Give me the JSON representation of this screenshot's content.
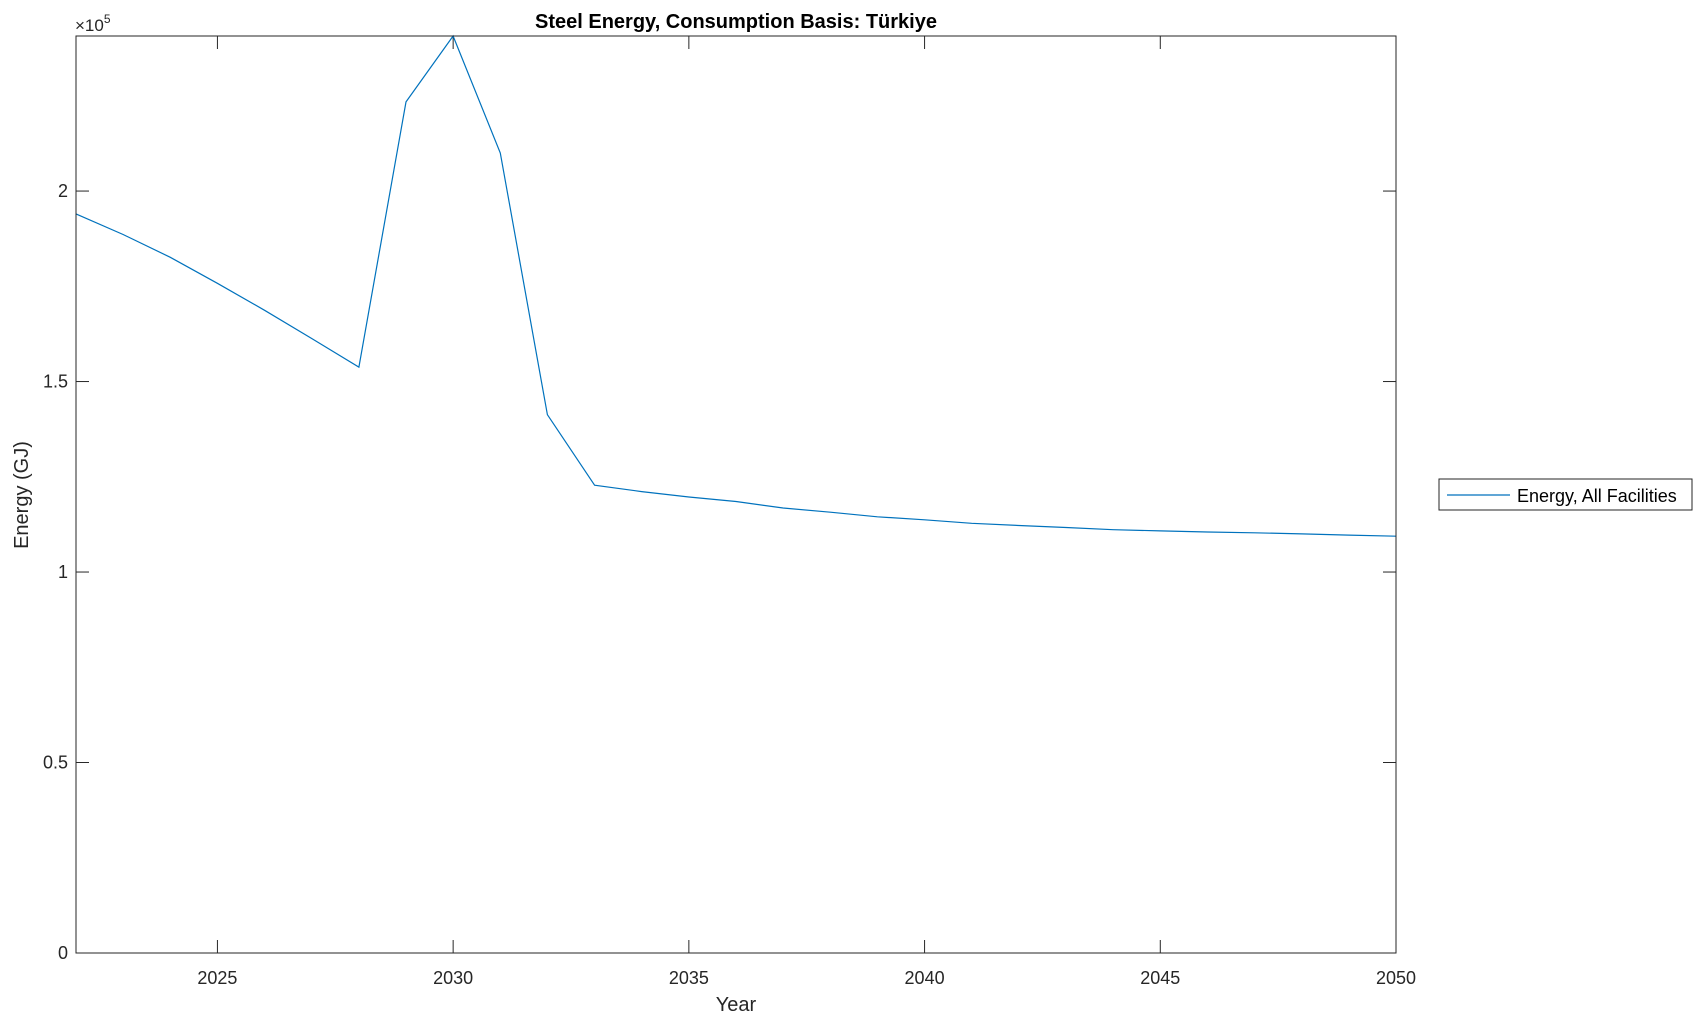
{
  "chart_data": {
    "type": "line",
    "title": "Steel Energy, Consumption Basis: Türkiye",
    "xlabel": "Year",
    "ylabel": "Energy (GJ)",
    "y_exponent_label": "×10",
    "y_exponent": "5",
    "xlim": [
      2022,
      2050
    ],
    "ylim": [
      0,
      240700
    ],
    "xticks": [
      2025,
      2030,
      2035,
      2040,
      2045,
      2050
    ],
    "yticks": [
      0,
      50000,
      100000,
      150000,
      200000
    ],
    "ytick_labels": [
      "0",
      "0.5",
      "1",
      "1.5",
      "2"
    ],
    "grid": false,
    "legend_placement": "outside-right",
    "series": [
      {
        "name": "Energy, All Facilities",
        "color": "#0072BD",
        "x": [
          2022,
          2023,
          2024,
          2025,
          2026,
          2027,
          2028,
          2029,
          2030,
          2031,
          2032,
          2033,
          2034,
          2035,
          2036,
          2037,
          2038,
          2039,
          2040,
          2041,
          2042,
          2043,
          2044,
          2045,
          2046,
          2047,
          2048,
          2049,
          2050
        ],
        "y": [
          194000,
          188600,
          182600,
          175800,
          168700,
          161300,
          153800,
          223400,
          240700,
          210000,
          141300,
          122800,
          121100,
          119700,
          118500,
          116800,
          115700,
          114500,
          113700,
          112800,
          112200,
          111700,
          111100,
          110800,
          110500,
          110300,
          110000,
          109700,
          109400
        ]
      }
    ]
  }
}
